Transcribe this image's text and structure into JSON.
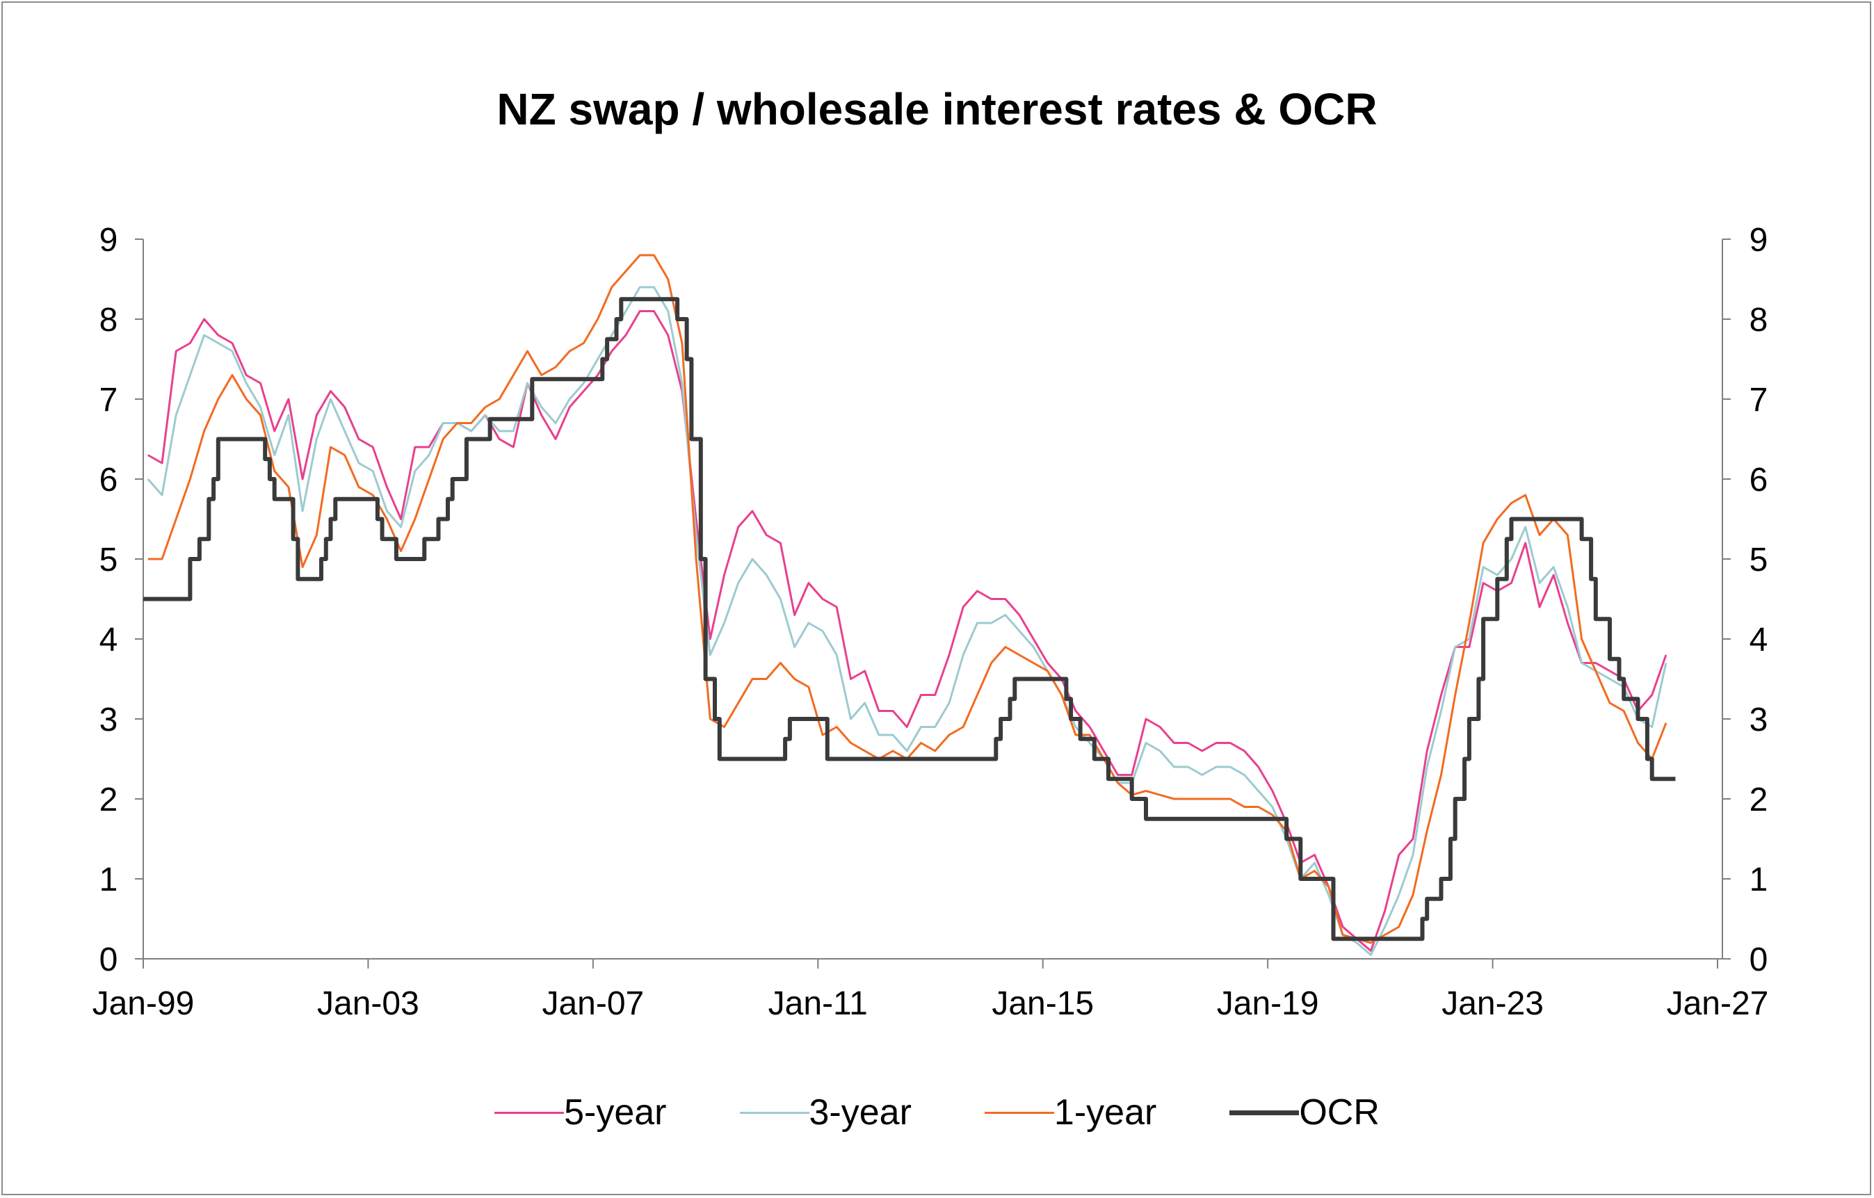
{
  "chart_data": {
    "type": "line",
    "title": "NZ swap / wholesale interest rates & OCR",
    "xlabel": "",
    "ylabel": "",
    "ylim": [
      0,
      9
    ],
    "yticks": [
      "0",
      "1",
      "2",
      "3",
      "4",
      "5",
      "6",
      "7",
      "8",
      "9"
    ],
    "xlim": [
      "1999-01",
      "2027-01"
    ],
    "xticks": [
      {
        "date": "1999-01",
        "label": "Jan-99"
      },
      {
        "date": "2003-01",
        "label": "Jan-03"
      },
      {
        "date": "2007-01",
        "label": "Jan-07"
      },
      {
        "date": "2011-01",
        "label": "Jan-11"
      },
      {
        "date": "2015-01",
        "label": "Jan-15"
      },
      {
        "date": "2019-01",
        "label": "Jan-19"
      },
      {
        "date": "2023-01",
        "label": "Jan-23"
      },
      {
        "date": "2027-01",
        "label": "Jan-27"
      }
    ],
    "grid": false,
    "legend_position": "bottom",
    "dual_y_axis": true,
    "dates": [
      "1999-02",
      "1999-05",
      "1999-08",
      "1999-11",
      "2000-02",
      "2000-05",
      "2000-08",
      "2000-11",
      "2001-02",
      "2001-05",
      "2001-08",
      "2001-11",
      "2002-02",
      "2002-05",
      "2002-08",
      "2002-11",
      "2003-02",
      "2003-05",
      "2003-08",
      "2003-11",
      "2004-02",
      "2004-05",
      "2004-08",
      "2004-11",
      "2005-02",
      "2005-05",
      "2005-08",
      "2005-11",
      "2006-02",
      "2006-05",
      "2006-08",
      "2006-11",
      "2007-02",
      "2007-05",
      "2007-08",
      "2007-11",
      "2008-02",
      "2008-05",
      "2008-08",
      "2008-11",
      "2009-02",
      "2009-05",
      "2009-08",
      "2009-11",
      "2010-02",
      "2010-05",
      "2010-08",
      "2010-11",
      "2011-02",
      "2011-05",
      "2011-08",
      "2011-11",
      "2012-02",
      "2012-05",
      "2012-08",
      "2012-11",
      "2013-02",
      "2013-05",
      "2013-08",
      "2013-11",
      "2014-02",
      "2014-05",
      "2014-08",
      "2014-11",
      "2015-02",
      "2015-05",
      "2015-08",
      "2015-11",
      "2016-02",
      "2016-05",
      "2016-08",
      "2016-11",
      "2017-02",
      "2017-05",
      "2017-08",
      "2017-11",
      "2018-02",
      "2018-05",
      "2018-08",
      "2018-11",
      "2019-02",
      "2019-05",
      "2019-08",
      "2019-11",
      "2020-02",
      "2020-05",
      "2020-08",
      "2020-11",
      "2021-02",
      "2021-05",
      "2021-08",
      "2021-11",
      "2022-02",
      "2022-05",
      "2022-08",
      "2022-11",
      "2023-02",
      "2023-05",
      "2023-08",
      "2023-11",
      "2024-02",
      "2024-05",
      "2024-08",
      "2024-11",
      "2025-02",
      "2025-05",
      "2025-08",
      "2025-11",
      "2026-02"
    ],
    "series": [
      {
        "name": "5-year",
        "color": "#e8408f",
        "values": [
          6.3,
          6.2,
          7.6,
          7.7,
          8.0,
          7.8,
          7.7,
          7.3,
          7.2,
          6.6,
          7.0,
          6.0,
          6.8,
          7.1,
          6.9,
          6.5,
          6.4,
          5.9,
          5.5,
          6.4,
          6.4,
          6.7,
          6.7,
          6.6,
          6.8,
          6.5,
          6.4,
          7.2,
          6.8,
          6.5,
          6.9,
          7.1,
          7.3,
          7.6,
          7.8,
          8.1,
          8.1,
          7.8,
          7.1,
          5.5,
          4.0,
          4.8,
          5.4,
          5.6,
          5.3,
          5.2,
          4.3,
          4.7,
          4.5,
          4.4,
          3.5,
          3.6,
          3.1,
          3.1,
          2.9,
          3.3,
          3.3,
          3.8,
          4.4,
          4.6,
          4.5,
          4.5,
          4.3,
          4.0,
          3.7,
          3.5,
          3.1,
          2.9,
          2.6,
          2.3,
          2.3,
          3.0,
          2.9,
          2.7,
          2.7,
          2.6,
          2.7,
          2.7,
          2.6,
          2.4,
          2.1,
          1.7,
          1.2,
          1.3,
          0.9,
          0.4,
          0.25,
          0.1,
          0.6,
          1.3,
          1.5,
          2.6,
          3.3,
          3.9,
          3.9,
          4.7,
          4.6,
          4.7,
          5.2,
          4.4,
          4.8,
          4.2,
          3.7,
          3.7,
          3.6,
          3.5,
          3.1,
          3.3,
          3.8
        ]
      },
      {
        "name": "3-year",
        "color": "#9ccbd0",
        "values": [
          6.0,
          5.8,
          6.8,
          7.3,
          7.8,
          7.7,
          7.6,
          7.2,
          6.9,
          6.3,
          6.8,
          5.6,
          6.5,
          7.0,
          6.6,
          6.2,
          6.1,
          5.6,
          5.4,
          6.1,
          6.3,
          6.7,
          6.7,
          6.6,
          6.8,
          6.6,
          6.6,
          7.2,
          6.9,
          6.7,
          7.0,
          7.2,
          7.5,
          7.8,
          8.1,
          8.4,
          8.4,
          8.1,
          7.2,
          5.3,
          3.8,
          4.2,
          4.7,
          5.0,
          4.8,
          4.5,
          3.9,
          4.2,
          4.1,
          3.8,
          3.0,
          3.2,
          2.8,
          2.8,
          2.6,
          2.9,
          2.9,
          3.2,
          3.8,
          4.2,
          4.2,
          4.3,
          4.1,
          3.9,
          3.6,
          3.3,
          2.9,
          2.7,
          2.5,
          2.2,
          2.2,
          2.7,
          2.6,
          2.4,
          2.4,
          2.3,
          2.4,
          2.4,
          2.3,
          2.1,
          1.9,
          1.5,
          1.0,
          1.2,
          0.8,
          0.3,
          0.2,
          0.05,
          0.4,
          0.8,
          1.3,
          2.4,
          3.1,
          3.9,
          4.0,
          4.9,
          4.8,
          5.0,
          5.4,
          4.7,
          4.9,
          4.4,
          3.7,
          3.6,
          3.5,
          3.4,
          3.0,
          2.9,
          3.7
        ]
      },
      {
        "name": "1-year",
        "color": "#f26b21",
        "values": [
          5.0,
          5.0,
          5.5,
          6.0,
          6.6,
          7.0,
          7.3,
          7.0,
          6.8,
          6.1,
          5.9,
          4.9,
          5.3,
          6.4,
          6.3,
          5.9,
          5.8,
          5.5,
          5.1,
          5.5,
          6.0,
          6.5,
          6.7,
          6.7,
          6.9,
          7.0,
          7.3,
          7.6,
          7.3,
          7.4,
          7.6,
          7.7,
          8.0,
          8.4,
          8.6,
          8.8,
          8.8,
          8.5,
          7.7,
          5.0,
          3.0,
          2.9,
          3.2,
          3.5,
          3.5,
          3.7,
          3.5,
          3.4,
          2.8,
          2.9,
          2.7,
          2.6,
          2.5,
          2.6,
          2.5,
          2.7,
          2.6,
          2.8,
          2.9,
          3.3,
          3.7,
          3.9,
          3.8,
          3.7,
          3.6,
          3.3,
          2.8,
          2.8,
          2.5,
          2.2,
          2.05,
          2.1,
          2.05,
          2.0,
          2.0,
          2.0,
          2.0,
          2.0,
          1.9,
          1.9,
          1.8,
          1.6,
          1.0,
          1.1,
          0.9,
          0.3,
          0.25,
          0.2,
          0.3,
          0.4,
          0.8,
          1.6,
          2.3,
          3.3,
          4.2,
          5.2,
          5.5,
          5.7,
          5.8,
          5.3,
          5.5,
          5.3,
          4.0,
          3.6,
          3.2,
          3.1,
          2.7,
          2.5,
          2.95
        ]
      },
      {
        "name": "OCR",
        "color": "#3a3a3a",
        "step": true,
        "end": "2026-04",
        "changes": [
          [
            "1999-01",
            4.5
          ],
          [
            "1999-11",
            5.0
          ],
          [
            "2000-01",
            5.25
          ],
          [
            "2000-03",
            5.75
          ],
          [
            "2000-04",
            6.0
          ],
          [
            "2000-05",
            6.5
          ],
          [
            "2001-03",
            6.25
          ],
          [
            "2001-04",
            6.0
          ],
          [
            "2001-05",
            5.75
          ],
          [
            "2001-09",
            5.25
          ],
          [
            "2001-10",
            4.75
          ],
          [
            "2002-03",
            5.0
          ],
          [
            "2002-04",
            5.25
          ],
          [
            "2002-05",
            5.5
          ],
          [
            "2002-06",
            5.75
          ],
          [
            "2003-03",
            5.5
          ],
          [
            "2003-04",
            5.25
          ],
          [
            "2003-07",
            5.0
          ],
          [
            "2004-01",
            5.25
          ],
          [
            "2004-04",
            5.5
          ],
          [
            "2004-06",
            5.75
          ],
          [
            "2004-07",
            6.0
          ],
          [
            "2004-10",
            6.5
          ],
          [
            "2005-03",
            6.75
          ],
          [
            "2005-12",
            7.25
          ],
          [
            "2007-03",
            7.5
          ],
          [
            "2007-04",
            7.75
          ],
          [
            "2007-06",
            8.0
          ],
          [
            "2007-07",
            8.25
          ],
          [
            "2008-07",
            8.0
          ],
          [
            "2008-09",
            7.5
          ],
          [
            "2008-10",
            6.5
          ],
          [
            "2008-12",
            5.0
          ],
          [
            "2009-01",
            3.5
          ],
          [
            "2009-03",
            3.0
          ],
          [
            "2009-04",
            2.5
          ],
          [
            "2010-06",
            2.75
          ],
          [
            "2010-07",
            3.0
          ],
          [
            "2011-03",
            2.5
          ],
          [
            "2014-03",
            2.75
          ],
          [
            "2014-04",
            3.0
          ],
          [
            "2014-06",
            3.25
          ],
          [
            "2014-07",
            3.5
          ],
          [
            "2015-06",
            3.25
          ],
          [
            "2015-07",
            3.0
          ],
          [
            "2015-09",
            2.75
          ],
          [
            "2015-12",
            2.5
          ],
          [
            "2016-03",
            2.25
          ],
          [
            "2016-08",
            2.0
          ],
          [
            "2016-11",
            1.75
          ],
          [
            "2019-05",
            1.5
          ],
          [
            "2019-08",
            1.0
          ],
          [
            "2020-03",
            0.25
          ],
          [
            "2021-10",
            0.5
          ],
          [
            "2021-11",
            0.75
          ],
          [
            "2022-02",
            1.0
          ],
          [
            "2022-04",
            1.5
          ],
          [
            "2022-05",
            2.0
          ],
          [
            "2022-07",
            2.5
          ],
          [
            "2022-08",
            3.0
          ],
          [
            "2022-10",
            3.5
          ],
          [
            "2022-11",
            4.25
          ],
          [
            "2023-02",
            4.75
          ],
          [
            "2023-04",
            5.25
          ],
          [
            "2023-05",
            5.5
          ],
          [
            "2024-08",
            5.25
          ],
          [
            "2024-10",
            4.75
          ],
          [
            "2024-11",
            4.25
          ],
          [
            "2025-02",
            3.75
          ],
          [
            "2025-04",
            3.5
          ],
          [
            "2025-05",
            3.25
          ],
          [
            "2025-08",
            3.0
          ],
          [
            "2025-10",
            2.5
          ],
          [
            "2025-11",
            2.25
          ]
        ]
      }
    ]
  }
}
